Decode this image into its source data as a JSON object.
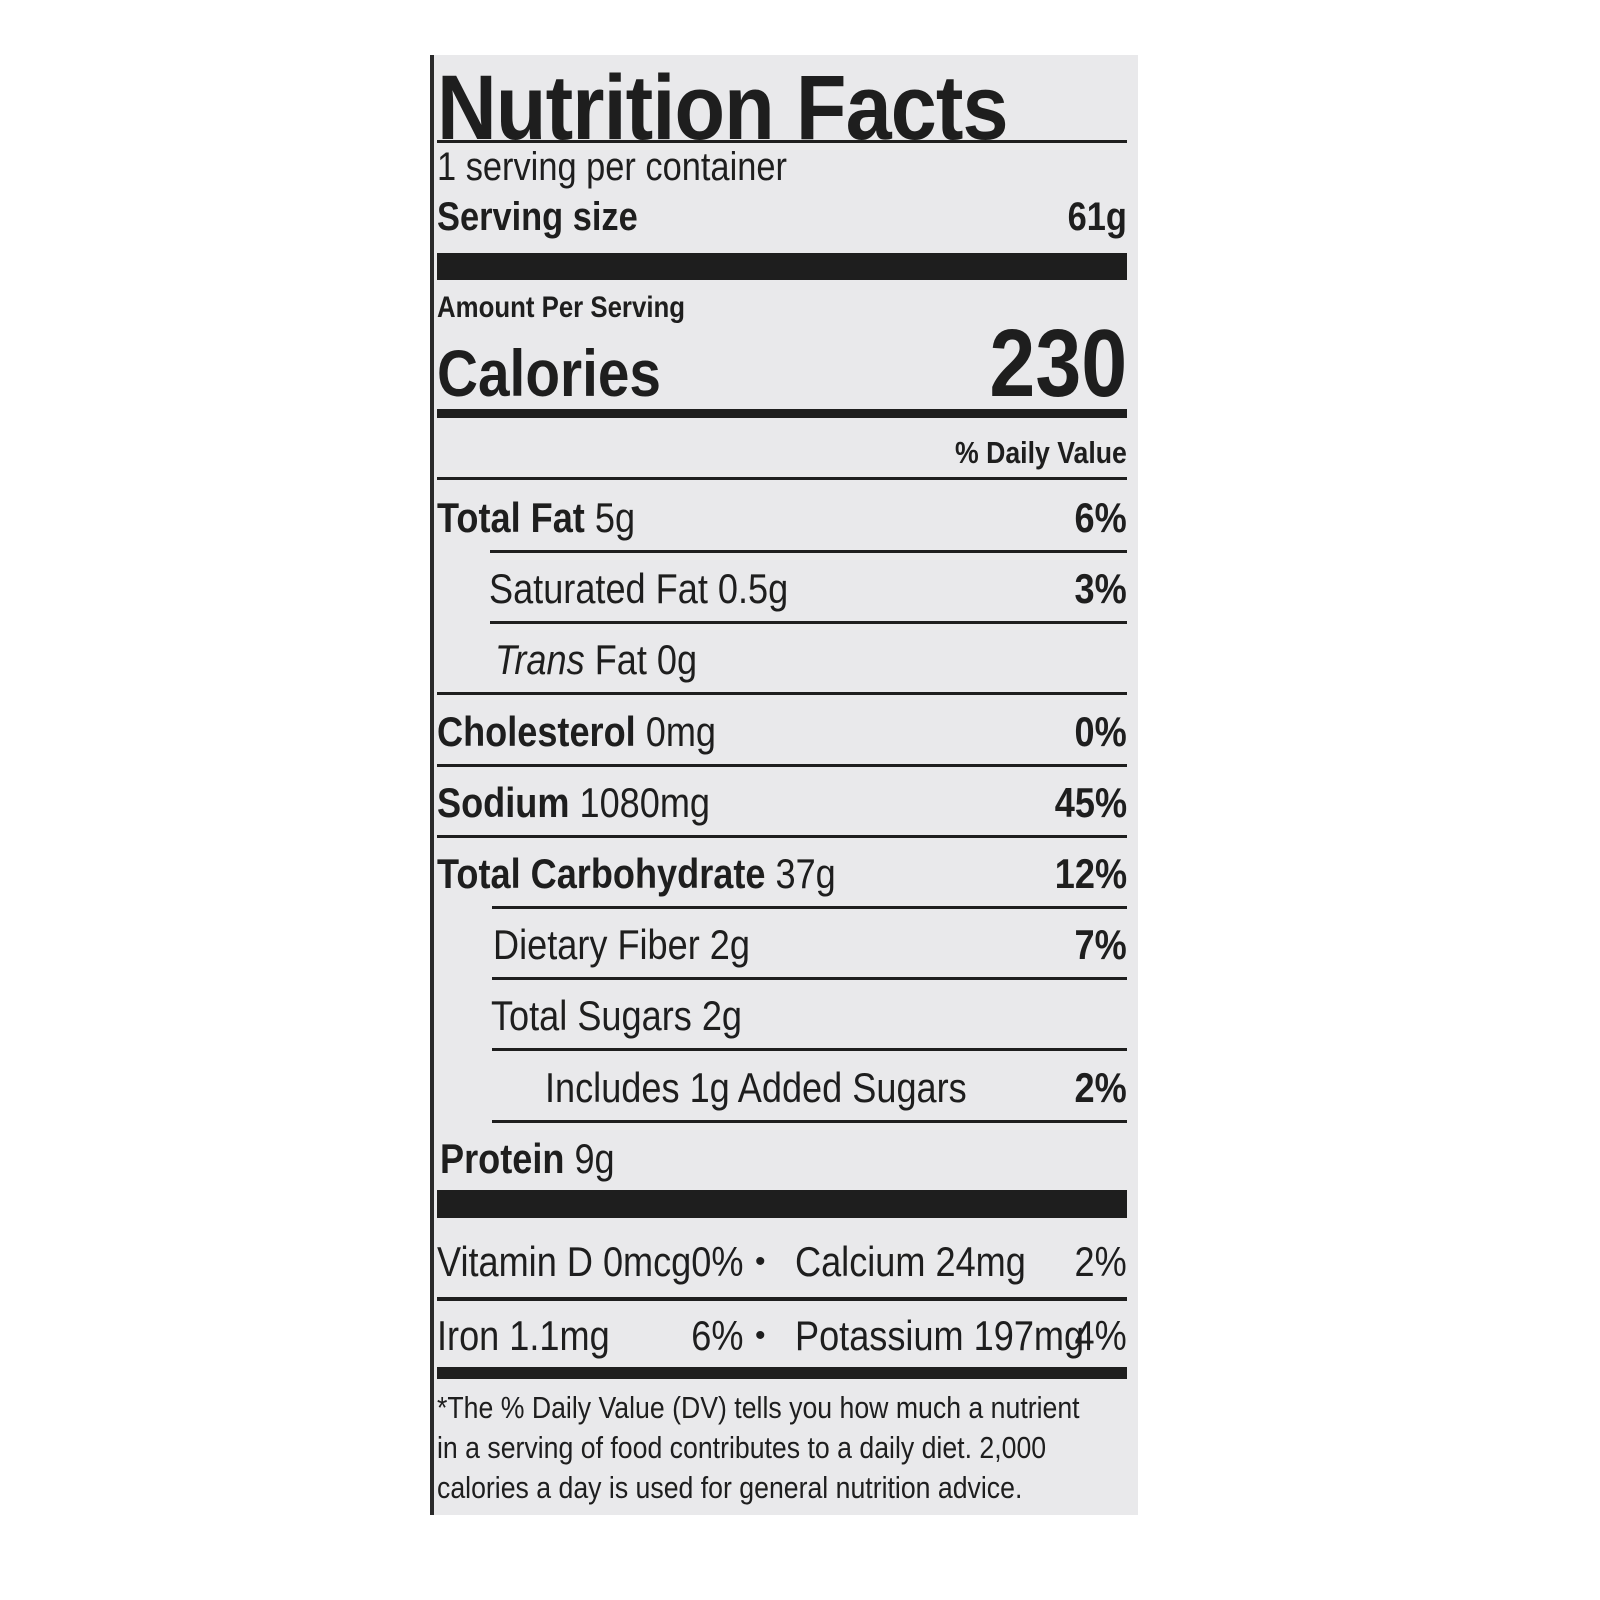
{
  "label": {
    "title": "Nutrition Facts",
    "servings_per_container": "1 serving per container",
    "serving_size_label": "Serving size",
    "serving_size_value": "61g",
    "amount_per_serving": "Amount Per Serving",
    "calories_label": "Calories",
    "calories_value": "230",
    "daily_value_header": "% Daily Value",
    "nutrients": [
      {
        "name": "Total Fat",
        "amount": "5g",
        "dv": "6%"
      },
      {
        "name": "Saturated Fat",
        "amount": "0.5g",
        "dv": "3%"
      },
      {
        "name": "Trans",
        "name_suffix": "Fat",
        "amount": "0g",
        "dv": ""
      },
      {
        "name": "Cholesterol",
        "amount": "0mg",
        "dv": "0%"
      },
      {
        "name": "Sodium",
        "amount": "1080mg",
        "dv": "45%"
      },
      {
        "name": "Total Carbohydrate",
        "amount": "37g",
        "dv": "12%"
      },
      {
        "name": "Dietary Fiber",
        "amount": "2g",
        "dv": "7%"
      },
      {
        "name": "Total Sugars",
        "amount": "2g",
        "dv": ""
      },
      {
        "name": "Includes 1g Added Sugars",
        "amount": "",
        "dv": "2%"
      },
      {
        "name": "Protein",
        "amount": "9g",
        "dv": ""
      }
    ],
    "vitamins": [
      {
        "left": "Vitamin D 0mcg",
        "left_dv": "0%",
        "bullet": "•",
        "right": "Calcium 24mg",
        "right_dv": "2%"
      },
      {
        "left": "Iron 1.1mg",
        "left_dv": "6%",
        "bullet": "•",
        "right": "Potassium 197mg",
        "right_dv": "4%"
      }
    ],
    "footnote": [
      "*The % Daily Value (DV) tells you how much a nutrient",
      "in a serving of food contributes to a daily diet. 2,000",
      "calories a day is used for general nutrition advice."
    ]
  }
}
